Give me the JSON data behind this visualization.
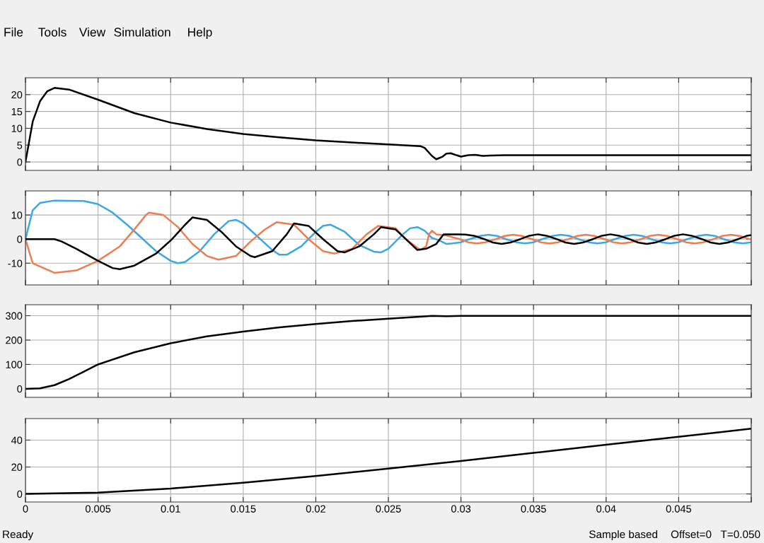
{
  "chart_data": [
    {
      "type": "line",
      "annotations": [
        "File",
        "Tools",
        "View",
        "Simulation",
        "Help"
      ],
      "xlim": [
        0,
        0.05
      ],
      "xticks": [
        {
          "value": 0,
          "label": null
        },
        {
          "value": 0.005,
          "label": null
        },
        {
          "value": 0.01,
          "label": null
        },
        {
          "value": 0.015,
          "label": null
        },
        {
          "value": 0.02,
          "label": null
        },
        {
          "value": 0.025,
          "label": null
        },
        {
          "value": 0.03,
          "label": null
        },
        {
          "value": 0.035,
          "label": null
        },
        {
          "value": 0.04,
          "label": null
        },
        {
          "value": 0.045,
          "label": null
        },
        {
          "value": 0.05,
          "label": null
        }
      ],
      "ylim": [
        -2.5,
        25
      ],
      "yticks": [
        0,
        5,
        10,
        15,
        20
      ],
      "grid": true,
      "tick_labels": "y",
      "series": [
        {
          "color": "#000000",
          "x": [
            0,
            0.0005,
            0.001,
            0.0015,
            0.002,
            0.003,
            0.005,
            0.0075,
            0.01,
            0.0125,
            0.015,
            0.0175,
            0.02,
            0.0225,
            0.025,
            0.0272,
            0.0275,
            0.028,
            0.0283,
            0.0287,
            0.029,
            0.0293,
            0.0297,
            0.03,
            0.0305,
            0.031,
            0.0315,
            0.032,
            0.033,
            0.05
          ],
          "values": [
            0,
            12,
            18,
            21,
            22,
            21.5,
            18.5,
            14.5,
            11.7,
            9.8,
            8.3,
            7.3,
            6.4,
            5.8,
            5.2,
            4.7,
            4.2,
            1.8,
            0.8,
            1.5,
            2.5,
            2.6,
            2.0,
            1.6,
            2.0,
            2.1,
            1.8,
            1.9,
            2.0,
            2.0
          ]
        }
      ]
    },
    {
      "type": "line",
      "xlim": [
        0,
        0.05
      ],
      "xticks": [
        {
          "value": 0,
          "label": null
        },
        {
          "value": 0.005,
          "label": null
        },
        {
          "value": 0.01,
          "label": null
        },
        {
          "value": 0.015,
          "label": null
        },
        {
          "value": 0.02,
          "label": null
        },
        {
          "value": 0.025,
          "label": null
        },
        {
          "value": 0.03,
          "label": null
        },
        {
          "value": 0.035,
          "label": null
        },
        {
          "value": 0.04,
          "label": null
        },
        {
          "value": 0.045,
          "label": null
        },
        {
          "value": 0.05,
          "label": null
        }
      ],
      "ylim": [
        -19,
        20
      ],
      "yticks": [
        -10,
        0,
        10
      ],
      "grid": true,
      "tick_labels": "y",
      "series": [
        {
          "color": "#3ba8e4",
          "x": [
            0,
            0.0005,
            0.001,
            0.002,
            0.004,
            0.005,
            0.006,
            0.007,
            0.008,
            0.009,
            0.01,
            0.0105,
            0.011,
            0.012,
            0.013,
            0.014,
            0.0145,
            0.015,
            0.016,
            0.017,
            0.0175,
            0.018,
            0.019,
            0.02,
            0.0205,
            0.021,
            0.022,
            0.023,
            0.024,
            0.0245,
            0.025,
            0.026,
            0.0265,
            0.027,
            0.0275,
            0.028,
            0.0285,
            0.029,
            0.0294,
            0.03,
            0.0306,
            0.0313,
            0.0319,
            0.0325,
            0.0331,
            0.0338,
            0.0344,
            0.035,
            0.0356,
            0.0363,
            0.0369,
            0.0375,
            0.0381,
            0.0388,
            0.0394,
            0.04,
            0.0406,
            0.0413,
            0.0419,
            0.0425,
            0.0431,
            0.0438,
            0.0444,
            0.045,
            0.0456,
            0.0463,
            0.0469,
            0.0475,
            0.0481,
            0.0488,
            0.0494,
            0.05
          ],
          "values": [
            0,
            12,
            15,
            16,
            15.8,
            14.5,
            11,
            6,
            0.5,
            -5,
            -9,
            -10,
            -9.5,
            -5,
            2,
            7.5,
            8,
            6.5,
            1,
            -4.5,
            -6.5,
            -6.5,
            -3,
            3,
            5.5,
            6,
            3,
            -2.5,
            -5.2,
            -5.5,
            -4,
            2,
            4.5,
            5,
            3.5,
            0.5,
            -0.5,
            -2,
            -1.8,
            -1.3,
            0,
            1.3,
            1.8,
            1.3,
            0,
            -1.3,
            -1.8,
            -1.3,
            0,
            1.3,
            1.8,
            1.3,
            0,
            -1.3,
            -1.8,
            -1.3,
            0,
            1.3,
            1.8,
            1.3,
            0,
            -1.3,
            -1.8,
            -1.3,
            0,
            1.3,
            1.8,
            1.3,
            0,
            -1.3,
            -1.8,
            -1.3
          ]
        },
        {
          "color": "#ee7d52",
          "x": [
            0,
            0.0005,
            0.002,
            0.0035,
            0.005,
            0.0065,
            0.0075,
            0.0083,
            0.0085,
            0.0095,
            0.0105,
            0.0115,
            0.0125,
            0.0133,
            0.0145,
            0.0155,
            0.0165,
            0.0173,
            0.0185,
            0.0195,
            0.0205,
            0.0213,
            0.0225,
            0.0235,
            0.0243,
            0.0255,
            0.0262,
            0.0272,
            0.0276,
            0.0278,
            0.028,
            0.0283,
            0.029,
            0.0299,
            0.0305,
            0.0311,
            0.0317,
            0.0324,
            0.033,
            0.0336,
            0.0342,
            0.0349,
            0.0355,
            0.0361,
            0.0367,
            0.0374,
            0.038,
            0.0386,
            0.0392,
            0.0399,
            0.0405,
            0.0411,
            0.0417,
            0.0424,
            0.043,
            0.0436,
            0.0442,
            0.0449,
            0.0455,
            0.0461,
            0.0467,
            0.0474,
            0.048,
            0.0486,
            0.0492,
            0.0499
          ],
          "values": [
            0,
            -10,
            -14,
            -13,
            -9,
            -3,
            4,
            10,
            11,
            10,
            5,
            -2,
            -7,
            -8.5,
            -7,
            -1,
            4,
            7,
            6,
            0,
            -5,
            -6,
            -4,
            2,
            5.5,
            4.5,
            0,
            -4.5,
            -3,
            2,
            3.5,
            2,
            1.5,
            0,
            -1.3,
            -1.8,
            -1.3,
            0,
            1.3,
            1.8,
            1.3,
            0,
            -1.3,
            -1.8,
            -1.3,
            0,
            1.3,
            1.8,
            1.3,
            0,
            -1.3,
            -1.8,
            -1.3,
            0,
            1.3,
            1.8,
            1.3,
            0,
            -1.3,
            -1.8,
            -1.3,
            0,
            1.3,
            1.8,
            1.3,
            0
          ]
        },
        {
          "color": "#000000",
          "x": [
            0,
            0.002,
            0.0025,
            0.0035,
            0.005,
            0.006,
            0.0065,
            0.0075,
            0.009,
            0.0101,
            0.011,
            0.0115,
            0.0125,
            0.0135,
            0.0145,
            0.0155,
            0.0158,
            0.017,
            0.018,
            0.0185,
            0.0195,
            0.0205,
            0.0215,
            0.022,
            0.023,
            0.024,
            0.0245,
            0.0255,
            0.0262,
            0.027,
            0.0276,
            0.0283,
            0.0288,
            0.0298,
            0.0303,
            0.0309,
            0.0316,
            0.0322,
            0.0328,
            0.0334,
            0.0341,
            0.0347,
            0.0353,
            0.0359,
            0.0366,
            0.0372,
            0.0378,
            0.0384,
            0.0391,
            0.0397,
            0.0403,
            0.0409,
            0.0416,
            0.0422,
            0.0428,
            0.0434,
            0.0441,
            0.0447,
            0.0453,
            0.0459,
            0.0466,
            0.0472,
            0.0478,
            0.0484,
            0.0491,
            0.0497,
            0.05
          ],
          "values": [
            0,
            0,
            -1,
            -4,
            -9,
            -12,
            -12.5,
            -11,
            -6,
            0,
            6,
            9,
            8,
            3,
            -3,
            -7,
            -7.5,
            -5,
            2,
            6.5,
            5.5,
            0,
            -5,
            -5.5,
            -3,
            2,
            5,
            4,
            0,
            -4.5,
            -4,
            -2,
            2,
            2,
            1.9,
            1.4,
            0,
            -1.4,
            -2,
            -1.4,
            0,
            1.4,
            2,
            1.4,
            0,
            -1.4,
            -2,
            -1.4,
            0,
            1.4,
            2,
            1.4,
            0,
            -1.4,
            -2,
            -1.4,
            0,
            1.4,
            2,
            1.4,
            0,
            -1.4,
            -2,
            -1.4,
            0,
            1.4,
            1.7
          ]
        }
      ]
    },
    {
      "type": "line",
      "xlim": [
        0,
        0.05
      ],
      "xticks": [
        {
          "value": 0,
          "label": null
        },
        {
          "value": 0.005,
          "label": null
        },
        {
          "value": 0.01,
          "label": null
        },
        {
          "value": 0.015,
          "label": null
        },
        {
          "value": 0.02,
          "label": null
        },
        {
          "value": 0.025,
          "label": null
        },
        {
          "value": 0.03,
          "label": null
        },
        {
          "value": 0.035,
          "label": null
        },
        {
          "value": 0.04,
          "label": null
        },
        {
          "value": 0.045,
          "label": null
        },
        {
          "value": 0.05,
          "label": null
        }
      ],
      "ylim": [
        -35,
        345
      ],
      "yticks": [
        0,
        100,
        200,
        300
      ],
      "grid": true,
      "tick_labels": "y",
      "series": [
        {
          "color": "#000000",
          "x": [
            0,
            0.001,
            0.002,
            0.003,
            0.004,
            0.005,
            0.0075,
            0.01,
            0.0125,
            0.015,
            0.0175,
            0.02,
            0.0225,
            0.025,
            0.0275,
            0.028,
            0.029,
            0.03,
            0.05
          ],
          "values": [
            0,
            2,
            15,
            40,
            70,
            100,
            150,
            187,
            215,
            235,
            252,
            266,
            278,
            288,
            297,
            299,
            298,
            299,
            299
          ]
        }
      ]
    },
    {
      "type": "line",
      "annotations": [
        "Ready",
        "Sample based",
        "Offset=0",
        "T=0.050"
      ],
      "xlim": [
        0,
        0.05
      ],
      "xticks": [
        0,
        0.005,
        0.01,
        0.015,
        0.02,
        0.025,
        0.03,
        0.035,
        0.04,
        0.045,
        {
          "value": 0.05,
          "label": null
        }
      ],
      "ylim": [
        -6,
        56
      ],
      "yticks": [
        0,
        20,
        40
      ],
      "grid": true,
      "series": [
        {
          "color": "#000000",
          "x": [
            0,
            0.005,
            0.01,
            0.015,
            0.02,
            0.025,
            0.03,
            0.035,
            0.04,
            0.045,
            0.05
          ],
          "values": [
            0,
            1,
            4,
            8.3,
            13.3,
            18.8,
            24.5,
            30.5,
            36.5,
            42.5,
            48.5
          ]
        }
      ]
    }
  ]
}
